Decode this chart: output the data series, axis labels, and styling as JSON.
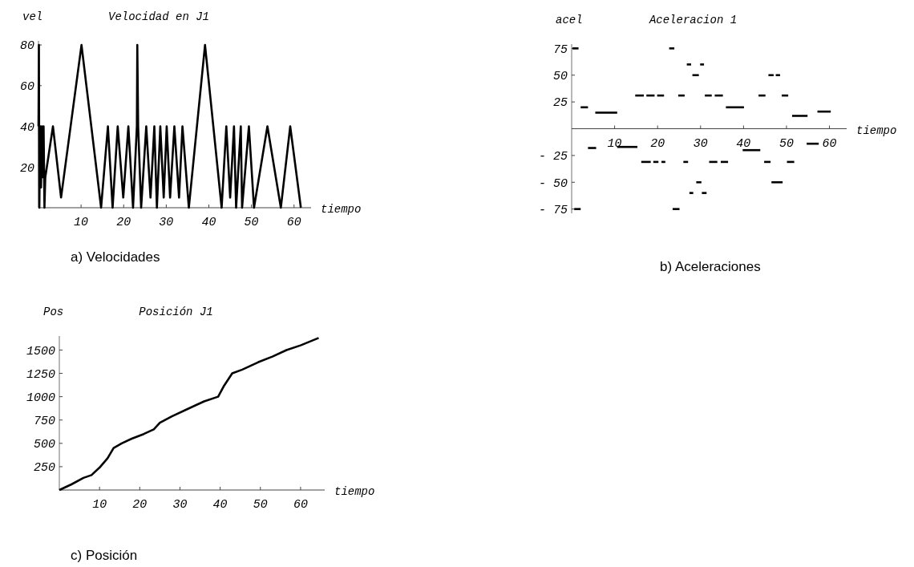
{
  "chart_data": [
    {
      "type": "line",
      "title": "Velocidad en J1",
      "xlabel": "tiempo",
      "ylabel": "vel",
      "annotations": [
        "a) Velocidades"
      ],
      "xlim": [
        0,
        64
      ],
      "ylim": [
        0,
        82
      ],
      "xticks": [
        10,
        20,
        30,
        40,
        50,
        60
      ],
      "yticks": [
        20,
        40,
        60,
        80
      ],
      "grid": false,
      "series": [
        {
          "color": "#000000",
          "x": [
            0,
            0.1,
            0.2,
            0.4,
            0.6,
            0.8,
            1.0,
            1.2,
            1.4,
            1.6,
            3.4,
            5.3,
            10.1,
            14.7,
            16.3,
            17.4,
            18.6,
            19.9,
            21.1,
            22.2,
            23.1,
            23.2,
            23.4,
            24.1,
            25.3,
            26.3,
            27.2,
            27.8,
            28.6,
            29.4,
            30.1,
            30.9,
            31.9,
            33,
            33.8,
            35.3,
            39.1,
            43,
            44.1,
            45,
            45.9,
            46.4,
            47.5,
            47.8,
            49.4,
            50.6,
            53.75,
            56.9,
            59.1,
            61.6
          ],
          "values": [
            40,
            80,
            0,
            40,
            10,
            40,
            15,
            40,
            0,
            15,
            40,
            5,
            80,
            0,
            40,
            0,
            40,
            5,
            40,
            0,
            40,
            80,
            40,
            0,
            40,
            5,
            40,
            0,
            40,
            5,
            40,
            5,
            40,
            5,
            40,
            0,
            80,
            0,
            40,
            5,
            40,
            0,
            40,
            0,
            40,
            0,
            40,
            0,
            40,
            0
          ]
        }
      ]
    },
    {
      "type": "line",
      "title": "Aceleracion 1",
      "xlabel": "tiempo",
      "ylabel": "acel",
      "annotations": [
        "b) Aceleraciones"
      ],
      "xlim": [
        0,
        64
      ],
      "ylim": [
        -79,
        79
      ],
      "xticks": [
        10,
        20,
        30,
        40,
        50,
        60
      ],
      "yticks": [
        {
          "value": -75,
          "label": "- 75"
        },
        {
          "value": -50,
          "label": "- 50"
        },
        {
          "value": -25,
          "label": "- 25"
        },
        25,
        50,
        75
      ],
      "grid": false,
      "series": [
        {
          "color": "#000000",
          "x": [
            0.2,
            1.6
          ],
          "values": [
            75,
            75
          ]
        },
        {
          "color": "#000000",
          "x": [
            0.6,
            2.1
          ],
          "values": [
            -75,
            -75
          ]
        },
        {
          "color": "#000000",
          "x": [
            2.1,
            3.8
          ],
          "values": [
            20,
            20
          ]
        },
        {
          "color": "#000000",
          "x": [
            3.8,
            5.7
          ],
          "values": [
            -18,
            -18
          ]
        },
        {
          "color": "#000000",
          "x": [
            5.5,
            10.6
          ],
          "values": [
            15,
            15
          ]
        },
        {
          "color": "#000000",
          "x": [
            10.6,
            15.3
          ],
          "values": [
            -17,
            -17
          ]
        },
        {
          "color": "#000000",
          "x": [
            14.8,
            16.8
          ],
          "values": [
            31,
            31
          ]
        },
        {
          "color": "#000000",
          "x": [
            17.4,
            19.3
          ],
          "values": [
            31,
            31
          ]
        },
        {
          "color": "#000000",
          "x": [
            19.9,
            21.5
          ],
          "values": [
            31,
            31
          ]
        },
        {
          "color": "#000000",
          "x": [
            16.2,
            18.4
          ],
          "values": [
            -31,
            -31
          ]
        },
        {
          "color": "#000000",
          "x": [
            19,
            20.2
          ],
          "values": [
            -31,
            -31
          ]
        },
        {
          "color": "#000000",
          "x": [
            20.9,
            21.8
          ],
          "values": [
            -31,
            -31
          ]
        },
        {
          "color": "#000000",
          "x": [
            22.7,
            23.9
          ],
          "values": [
            75,
            75
          ]
        },
        {
          "color": "#000000",
          "x": [
            23.5,
            25.1
          ],
          "values": [
            -75,
            -75
          ]
        },
        {
          "color": "#000000",
          "x": [
            24.8,
            26.3
          ],
          "values": [
            31,
            31
          ]
        },
        {
          "color": "#000000",
          "x": [
            26,
            27.1
          ],
          "values": [
            -31,
            -31
          ]
        },
        {
          "color": "#000000",
          "x": [
            26.8,
            27.8
          ],
          "values": [
            60,
            60
          ]
        },
        {
          "color": "#000000",
          "x": [
            29.9,
            30.8
          ],
          "values": [
            60,
            60
          ]
        },
        {
          "color": "#000000",
          "x": [
            28.1,
            29.6
          ],
          "values": [
            50,
            50
          ]
        },
        {
          "color": "#000000",
          "x": [
            29,
            30.2
          ],
          "values": [
            -50,
            -50
          ]
        },
        {
          "color": "#000000",
          "x": [
            27.4,
            28.3
          ],
          "values": [
            -60,
            -60
          ]
        },
        {
          "color": "#000000",
          "x": [
            30.3,
            31.4
          ],
          "values": [
            -60,
            -60
          ]
        },
        {
          "color": "#000000",
          "x": [
            31,
            32.6
          ],
          "values": [
            31,
            31
          ]
        },
        {
          "color": "#000000",
          "x": [
            33.3,
            35.2
          ],
          "values": [
            31,
            31
          ]
        },
        {
          "color": "#000000",
          "x": [
            32,
            33.9
          ],
          "values": [
            -31,
            -31
          ]
        },
        {
          "color": "#000000",
          "x": [
            34.7,
            36.4
          ],
          "values": [
            -31,
            -31
          ]
        },
        {
          "color": "#000000",
          "x": [
            35.9,
            40.1
          ],
          "values": [
            20,
            20
          ]
        },
        {
          "color": "#000000",
          "x": [
            39.8,
            43.9
          ],
          "values": [
            -20,
            -20
          ]
        },
        {
          "color": "#000000",
          "x": [
            43.5,
            45.1
          ],
          "values": [
            31,
            31
          ]
        },
        {
          "color": "#000000",
          "x": [
            44.8,
            46.3
          ],
          "values": [
            -31,
            -31
          ]
        },
        {
          "color": "#000000",
          "x": [
            45.8,
            47
          ],
          "values": [
            50,
            50
          ]
        },
        {
          "color": "#000000",
          "x": [
            47.5,
            48.5
          ],
          "values": [
            50,
            50
          ]
        },
        {
          "color": "#000000",
          "x": [
            46.5,
            49.1
          ],
          "values": [
            -50,
            -50
          ]
        },
        {
          "color": "#000000",
          "x": [
            48.9,
            50.4
          ],
          "values": [
            31,
            31
          ]
        },
        {
          "color": "#000000",
          "x": [
            50.1,
            51.8
          ],
          "values": [
            -31,
            -31
          ]
        },
        {
          "color": "#000000",
          "x": [
            51.3,
            54.9
          ],
          "values": [
            12,
            12
          ]
        },
        {
          "color": "#000000",
          "x": [
            54.7,
            57.5
          ],
          "values": [
            -14,
            -14
          ]
        },
        {
          "color": "#000000",
          "x": [
            57.2,
            60.3
          ],
          "values": [
            16,
            16
          ]
        }
      ]
    },
    {
      "type": "line",
      "title": "Posición J1",
      "xlabel": "tiempo",
      "ylabel": "Pos",
      "annotations": [
        "c) Posición"
      ],
      "xlim": [
        0,
        66
      ],
      "ylim": [
        0,
        1650
      ],
      "xticks": [
        10,
        20,
        30,
        40,
        50,
        60
      ],
      "yticks": [
        250,
        500,
        750,
        1000,
        1250,
        1500
      ],
      "grid": false,
      "series": [
        {
          "color": "#000000",
          "x": [
            0,
            3,
            6,
            8,
            10,
            12,
            13.5,
            15.5,
            18,
            21,
            23.5,
            25,
            28,
            32,
            36,
            39.5,
            41,
            43,
            45.5,
            49.5,
            53,
            56.5,
            60,
            64.5
          ],
          "values": [
            0,
            60,
            130,
            160,
            240,
            340,
            450,
            500,
            550,
            600,
            650,
            720,
            790,
            870,
            950,
            1000,
            1120,
            1250,
            1290,
            1370,
            1430,
            1500,
            1550,
            1630
          ]
        }
      ]
    }
  ]
}
